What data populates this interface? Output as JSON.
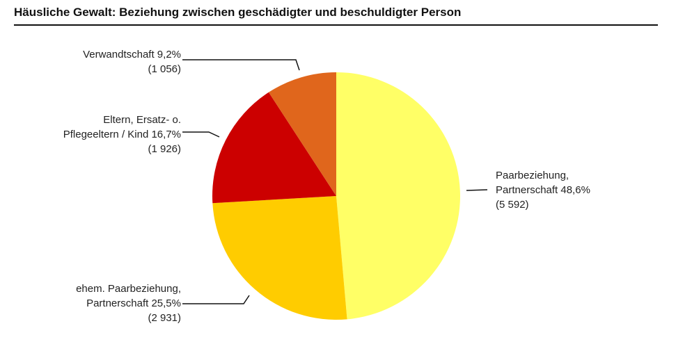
{
  "chart_data": {
    "type": "pie",
    "title": "Häusliche Gewalt: Beziehung zwischen geschädigter und beschuldigter Person",
    "categories": [
      "Paarbeziehung,\nPartnerschaft 48,6%",
      "ehem. Paarbeziehung,\nPartnerschaft 25,5%",
      "Eltern, Ersatz- o.\nPflegeeltern / Kind 16,7%",
      "Verwandtschaft 9,2%"
    ],
    "values": [
      5592,
      2931,
      1926,
      1056
    ],
    "value_labels": [
      "(5 592)",
      "(2 931)",
      "(1 926)",
      "(1 056)"
    ],
    "colors": [
      "#ffff66",
      "#ffcc00",
      "#cc0000",
      "#e0661c"
    ]
  }
}
